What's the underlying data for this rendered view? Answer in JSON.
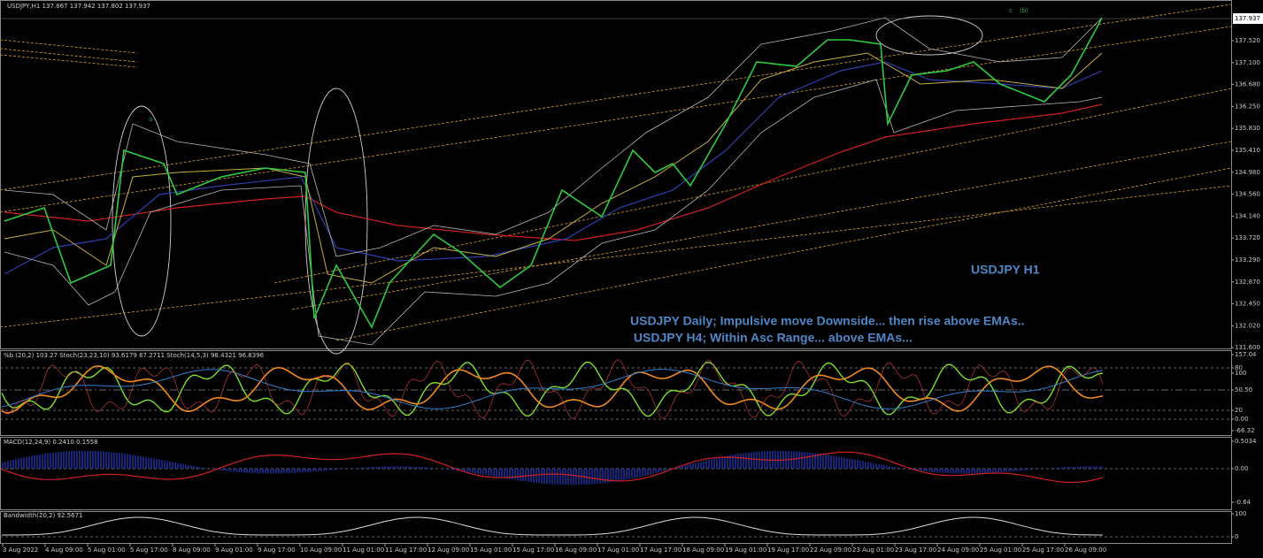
{
  "header": {
    "main": "USDJPY,H1  137.867 137.942 137.802 137.937",
    "oscillators": "%b (20,2) 103.27  Stoch(23,23,10) 93.6179 67.2711  Stoch(14,5,3) 98.4321 96.8396",
    "macd": "MACD(12,24,9) 0.2410 0.1558",
    "bandwidth": "Bandwidth(20,2) 92.5671"
  },
  "annotations": {
    "symbol": "USDJPY H1",
    "daily": "USDJPY Daily; Impulsive move Downside... then rise above EMAs..",
    "h4": " USDJPY H4; Within Asc Range... above EMAs...",
    "wave_a": "a",
    "wave_c": "c",
    "wave_b": "(b)"
  },
  "current_price": "137.937",
  "price_axis": [
    "137.520",
    "137.100",
    "136.680",
    "136.250",
    "135.830",
    "135.410",
    "134.980",
    "134.560",
    "134.140",
    "133.720",
    "133.290",
    "132.870",
    "132.450",
    "132.020",
    "131.600"
  ],
  "oscillator_axis": [
    "157.04",
    "100",
    "80",
    "50.50",
    "20",
    "0.00",
    "-66.32"
  ],
  "macd_axis": [
    "0.5034",
    "0.00",
    "-0.64"
  ],
  "bandwidth_axis": [
    "100",
    "0"
  ],
  "time_axis": [
    "3 Aug 2022",
    "4 Aug 09:00",
    "5 Aug 01:00",
    "5 Aug 17:00",
    "8 Aug 09:00",
    "9 Aug 01:00",
    "9 Aug 17:00",
    "10 Aug 09:00",
    "11 Aug 01:00",
    "11 Aug 17:00",
    "12 Aug 09:00",
    "15 Aug 01:00",
    "15 Aug 17:00",
    "16 Aug 09:00",
    "17 Aug 01:00",
    "17 Aug 17:00",
    "18 Aug 09:00",
    "19 Aug 01:00",
    "19 Aug 17:00",
    "22 Aug 09:00",
    "23 Aug 01:00",
    "23 Aug 17:00",
    "24 Aug 09:00",
    "25 Aug 01:00",
    "25 Aug 17:00",
    "26 Aug 09:00"
  ]
}
